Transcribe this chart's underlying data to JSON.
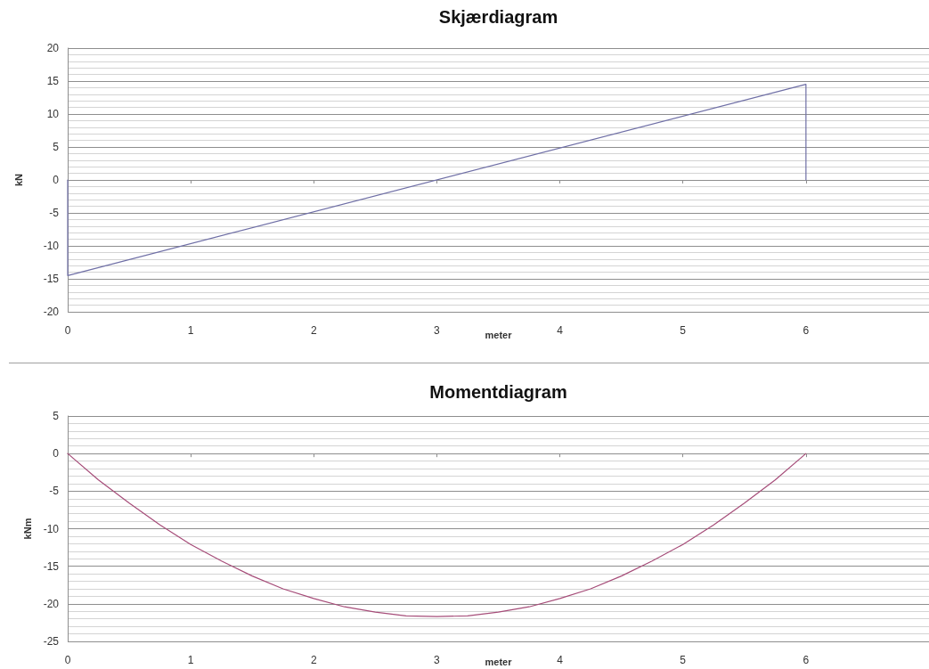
{
  "chart_data": [
    {
      "type": "line",
      "title": "Skjærdiagram",
      "xlabel": "meter",
      "ylabel": "kN",
      "color": "#6f6fa6",
      "x": [
        0,
        0,
        6,
        6
      ],
      "values": [
        0,
        -14.5,
        14.5,
        0
      ],
      "xlim": [
        0,
        7
      ],
      "xticks": [
        0,
        1,
        2,
        3,
        4,
        5,
        6
      ],
      "ylim": [
        -20,
        20
      ],
      "yticks": [
        -20,
        {
          "value": -19,
          "label": null
        },
        {
          "value": -18,
          "label": null
        },
        {
          "value": -17,
          "label": null
        },
        {
          "value": -16,
          "label": null
        },
        -15,
        {
          "value": -14,
          "label": null
        },
        {
          "value": -13,
          "label": null
        },
        {
          "value": -12,
          "label": null
        },
        {
          "value": -11,
          "label": null
        },
        -10,
        {
          "value": -9,
          "label": null
        },
        {
          "value": -8,
          "label": null
        },
        {
          "value": -7,
          "label": null
        },
        {
          "value": -6,
          "label": null
        },
        -5,
        {
          "value": -4,
          "label": null
        },
        {
          "value": -3,
          "label": null
        },
        {
          "value": -2,
          "label": null
        },
        {
          "value": -1,
          "label": null
        },
        0,
        {
          "value": 1,
          "label": null
        },
        {
          "value": 2,
          "label": null
        },
        {
          "value": 3,
          "label": null
        },
        {
          "value": 4,
          "label": null
        },
        5,
        {
          "value": 6,
          "label": null
        },
        {
          "value": 7,
          "label": null
        },
        {
          "value": 8,
          "label": null
        },
        {
          "value": 9,
          "label": null
        },
        10,
        {
          "value": 11,
          "label": null
        },
        {
          "value": 12,
          "label": null
        },
        {
          "value": 13,
          "label": null
        },
        {
          "value": 14,
          "label": null
        },
        15,
        {
          "value": 16,
          "label": null
        },
        {
          "value": 17,
          "label": null
        },
        {
          "value": 18,
          "label": null
        },
        {
          "value": 19,
          "label": null
        },
        20
      ],
      "grid": "y"
    },
    {
      "type": "line",
      "title": "Momentdiagram",
      "xlabel": "meter",
      "ylabel": "kNm",
      "color": "#a64d79",
      "x": [
        0,
        0.25,
        0.5,
        0.75,
        1,
        1.25,
        1.5,
        1.75,
        2,
        2.25,
        2.5,
        2.75,
        3,
        3.25,
        3.5,
        3.75,
        4,
        4.25,
        4.5,
        4.75,
        5,
        5.25,
        5.5,
        5.75,
        6
      ],
      "values": [
        0,
        -3.5,
        -6.6,
        -9.5,
        -12.1,
        -14.3,
        -16.3,
        -18.0,
        -19.3,
        -20.4,
        -21.1,
        -21.6,
        -21.7,
        -21.6,
        -21.1,
        -20.4,
        -19.3,
        -18.0,
        -16.3,
        -14.3,
        -12.1,
        -9.5,
        -6.6,
        -3.5,
        0
      ],
      "xlim": [
        0,
        7
      ],
      "xticks": [
        0,
        1,
        2,
        3,
        4,
        5,
        6
      ],
      "ylim": [
        -25,
        5
      ],
      "yticks": [
        -25,
        {
          "value": -24,
          "label": null
        },
        {
          "value": -23,
          "label": null
        },
        {
          "value": -22,
          "label": null
        },
        {
          "value": -21,
          "label": null
        },
        -20,
        {
          "value": -19,
          "label": null
        },
        {
          "value": -18,
          "label": null
        },
        {
          "value": -17,
          "label": null
        },
        {
          "value": -16,
          "label": null
        },
        -15,
        {
          "value": -14,
          "label": null
        },
        {
          "value": -13,
          "label": null
        },
        {
          "value": -12,
          "label": null
        },
        {
          "value": -11,
          "label": null
        },
        -10,
        {
          "value": -9,
          "label": null
        },
        {
          "value": -8,
          "label": null
        },
        {
          "value": -7,
          "label": null
        },
        {
          "value": -6,
          "label": null
        },
        -5,
        {
          "value": -4,
          "label": null
        },
        {
          "value": -3,
          "label": null
        },
        {
          "value": -2,
          "label": null
        },
        {
          "value": -1,
          "label": null
        },
        0,
        {
          "value": 1,
          "label": null
        },
        {
          "value": 2,
          "label": null
        },
        {
          "value": 3,
          "label": null
        },
        {
          "value": 4,
          "label": null
        },
        5
      ],
      "grid": "y"
    }
  ]
}
